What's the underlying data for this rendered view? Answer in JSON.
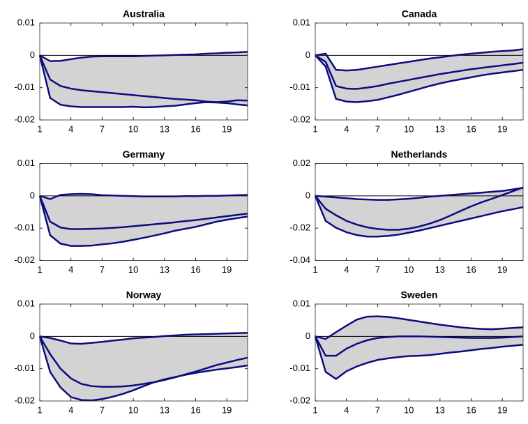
{
  "chart_data": [
    {
      "type": "band",
      "title": "Australia",
      "x": [
        1,
        2,
        3,
        4,
        5,
        6,
        7,
        8,
        9,
        10,
        11,
        12,
        13,
        14,
        15,
        16,
        17,
        18,
        19,
        20,
        21
      ],
      "xlim": [
        1,
        21
      ],
      "xticks": [
        1,
        4,
        7,
        10,
        13,
        16,
        19
      ],
      "ylim": [
        -0.02,
        0.01
      ],
      "yticks": [
        -0.02,
        -0.01,
        0,
        0.01
      ],
      "band_fill": "#d3d3d3",
      "zero_line": true,
      "series": [
        {
          "color": "#0c0c80",
          "values": [
            0,
            -0.0018,
            -0.0017,
            -0.0012,
            -0.0007,
            -0.0004,
            -0.0003,
            -0.0003,
            -0.0003,
            -0.0003,
            -0.0002,
            -0.0001,
            0,
            0.0001,
            0.0002,
            0.0003,
            0.0005,
            0.0006,
            0.0008,
            0.0009,
            0.0011
          ]
        },
        {
          "color": "#0c0c80",
          "values": [
            0,
            -0.0075,
            -0.0095,
            -0.0103,
            -0.0108,
            -0.0111,
            -0.0114,
            -0.0117,
            -0.012,
            -0.0123,
            -0.0126,
            -0.0129,
            -0.0132,
            -0.0135,
            -0.0137,
            -0.0139,
            -0.0143,
            -0.0145,
            -0.0143,
            -0.0139,
            -0.014
          ]
        },
        {
          "color": "#0c0c80",
          "values": [
            0,
            -0.0132,
            -0.0153,
            -0.0158,
            -0.016,
            -0.016,
            -0.016,
            -0.016,
            -0.016,
            -0.0159,
            -0.0161,
            -0.016,
            -0.0158,
            -0.0156,
            -0.0152,
            -0.0148,
            -0.0145,
            -0.0146,
            -0.0148,
            -0.0152,
            -0.0155
          ]
        }
      ]
    },
    {
      "type": "band",
      "title": "Canada",
      "x": [
        1,
        2,
        3,
        4,
        5,
        6,
        7,
        8,
        9,
        10,
        11,
        12,
        13,
        14,
        15,
        16,
        17,
        18,
        19,
        20,
        21
      ],
      "xlim": [
        1,
        21
      ],
      "xticks": [
        1,
        4,
        7,
        10,
        13,
        16,
        19
      ],
      "ylim": [
        -0.02,
        0.01
      ],
      "yticks": [
        -0.02,
        -0.01,
        0,
        0.01
      ],
      "band_fill": "#d3d3d3",
      "zero_line": true,
      "series": [
        {
          "color": "#0c0c80",
          "values": [
            0,
            0.0005,
            -0.0045,
            -0.0047,
            -0.0045,
            -0.004,
            -0.0035,
            -0.003,
            -0.0025,
            -0.002,
            -0.0015,
            -0.001,
            -0.0006,
            -0.0002,
            0.0002,
            0.0005,
            0.0008,
            0.0011,
            0.0013,
            0.0015,
            0.0019
          ]
        },
        {
          "color": "#0c0c80",
          "values": [
            0,
            -0.002,
            -0.0095,
            -0.0103,
            -0.0104,
            -0.01,
            -0.0095,
            -0.0088,
            -0.0082,
            -0.0076,
            -0.007,
            -0.0064,
            -0.0058,
            -0.0053,
            -0.0048,
            -0.0043,
            -0.0039,
            -0.0035,
            -0.0031,
            -0.0027,
            -0.0023
          ]
        },
        {
          "color": "#0c0c80",
          "values": [
            0,
            -0.0035,
            -0.0135,
            -0.0143,
            -0.0145,
            -0.0142,
            -0.0138,
            -0.013,
            -0.0122,
            -0.0113,
            -0.0104,
            -0.0095,
            -0.0087,
            -0.008,
            -0.0074,
            -0.0068,
            -0.0062,
            -0.0057,
            -0.0053,
            -0.0049,
            -0.0045
          ]
        }
      ]
    },
    {
      "type": "band",
      "title": "Germany",
      "x": [
        1,
        2,
        3,
        4,
        5,
        6,
        7,
        8,
        9,
        10,
        11,
        12,
        13,
        14,
        15,
        16,
        17,
        18,
        19,
        20,
        21
      ],
      "xlim": [
        1,
        21
      ],
      "xticks": [
        1,
        4,
        7,
        10,
        13,
        16,
        19
      ],
      "ylim": [
        -0.02,
        0.01
      ],
      "yticks": [
        -0.02,
        -0.01,
        0,
        0.01
      ],
      "band_fill": "#d3d3d3",
      "zero_line": true,
      "series": [
        {
          "color": "#0c0c80",
          "values": [
            0,
            -0.001,
            0.0003,
            0.0005,
            0.0006,
            0.0005,
            0.0002,
            0.0001,
            0,
            -0.0001,
            -0.0002,
            -0.0002,
            -0.0002,
            -0.0002,
            -0.0001,
            -0.0001,
            0,
            0,
            0.0001,
            0.0002,
            0.0003
          ]
        },
        {
          "color": "#0c0c80",
          "values": [
            0,
            -0.008,
            -0.0098,
            -0.0103,
            -0.0103,
            -0.0102,
            -0.0101,
            -0.0099,
            -0.0097,
            -0.0094,
            -0.0091,
            -0.0088,
            -0.0085,
            -0.0082,
            -0.0078,
            -0.0075,
            -0.0071,
            -0.0067,
            -0.0063,
            -0.0059,
            -0.0055
          ]
        },
        {
          "color": "#0c0c80",
          "values": [
            0,
            -0.0122,
            -0.0148,
            -0.0155,
            -0.0155,
            -0.0154,
            -0.015,
            -0.0147,
            -0.0142,
            -0.0136,
            -0.013,
            -0.0123,
            -0.0116,
            -0.0108,
            -0.0102,
            -0.0096,
            -0.0088,
            -0.008,
            -0.0074,
            -0.0069,
            -0.0064
          ]
        }
      ]
    },
    {
      "type": "band",
      "title": "Netherlands",
      "x": [
        1,
        2,
        3,
        4,
        5,
        6,
        7,
        8,
        9,
        10,
        11,
        12,
        13,
        14,
        15,
        16,
        17,
        18,
        19,
        20,
        21
      ],
      "xlim": [
        1,
        21
      ],
      "xticks": [
        1,
        4,
        7,
        10,
        13,
        16,
        19
      ],
      "ylim": [
        -0.04,
        0.02
      ],
      "yticks": [
        -0.04,
        -0.02,
        0,
        0.02
      ],
      "band_fill": "#d3d3d3",
      "zero_line": true,
      "series": [
        {
          "color": "#0c0c80",
          "values": [
            0,
            -0.0005,
            -0.001,
            -0.0015,
            -0.002,
            -0.0023,
            -0.0025,
            -0.0025,
            -0.0022,
            -0.0018,
            -0.0012,
            -0.0005,
            0,
            0.0005,
            0.001,
            0.0015,
            0.002,
            0.0025,
            0.003,
            0.004,
            0.005
          ]
        },
        {
          "color": "#0c0c80",
          "values": [
            0,
            -0.008,
            -0.012,
            -0.0155,
            -0.0178,
            -0.0195,
            -0.0205,
            -0.021,
            -0.021,
            -0.0203,
            -0.019,
            -0.0172,
            -0.015,
            -0.0122,
            -0.0093,
            -0.0065,
            -0.004,
            -0.0018,
            0.0005,
            0.0028,
            0.0052
          ]
        },
        {
          "color": "#0c0c80",
          "values": [
            0,
            -0.0155,
            -0.0198,
            -0.0225,
            -0.0243,
            -0.0252,
            -0.0252,
            -0.0248,
            -0.024,
            -0.0228,
            -0.0215,
            -0.02,
            -0.0185,
            -0.017,
            -0.0155,
            -0.014,
            -0.0125,
            -0.011,
            -0.0095,
            -0.0083,
            -0.007
          ]
        }
      ]
    },
    {
      "type": "band",
      "title": "Norway",
      "x": [
        1,
        2,
        3,
        4,
        5,
        6,
        7,
        8,
        9,
        10,
        11,
        12,
        13,
        14,
        15,
        16,
        17,
        18,
        19,
        20,
        21
      ],
      "xlim": [
        1,
        21
      ],
      "xticks": [
        1,
        4,
        7,
        10,
        13,
        16,
        19
      ],
      "ylim": [
        -0.02,
        0.01
      ],
      "yticks": [
        -0.02,
        -0.01,
        0,
        0.01
      ],
      "band_fill": "#d3d3d3",
      "zero_line": true,
      "series": [
        {
          "color": "#0c0c80",
          "values": [
            0,
            -0.0005,
            -0.0013,
            -0.0022,
            -0.0023,
            -0.002,
            -0.0017,
            -0.0013,
            -0.001,
            -0.0006,
            -0.0004,
            -0.0002,
            0.0001,
            0.0003,
            0.0005,
            0.0006,
            0.0007,
            0.0008,
            0.0009,
            0.001,
            0.0011
          ]
        },
        {
          "color": "#0c0c80",
          "values": [
            0,
            -0.0055,
            -0.01,
            -0.013,
            -0.0147,
            -0.0154,
            -0.0156,
            -0.0156,
            -0.0155,
            -0.0152,
            -0.0147,
            -0.0142,
            -0.0135,
            -0.0127,
            -0.0118,
            -0.0109,
            -0.0099,
            -0.0089,
            -0.0081,
            -0.0073,
            -0.0066
          ]
        },
        {
          "color": "#0c0c80",
          "values": [
            0,
            -0.011,
            -0.0158,
            -0.0188,
            -0.0197,
            -0.0198,
            -0.0194,
            -0.0187,
            -0.0178,
            -0.0167,
            -0.0154,
            -0.0142,
            -0.0133,
            -0.0126,
            -0.0119,
            -0.0113,
            -0.0108,
            -0.0103,
            -0.0099,
            -0.0095,
            -0.009
          ]
        }
      ]
    },
    {
      "type": "band",
      "title": "Sweden",
      "x": [
        1,
        2,
        3,
        4,
        5,
        6,
        7,
        8,
        9,
        10,
        11,
        12,
        13,
        14,
        15,
        16,
        17,
        18,
        19,
        20,
        21
      ],
      "xlim": [
        1,
        21
      ],
      "xticks": [
        1,
        4,
        7,
        10,
        13,
        16,
        19
      ],
      "ylim": [
        -0.02,
        0.01
      ],
      "yticks": [
        -0.02,
        -0.01,
        0,
        0.01
      ],
      "band_fill": "#d3d3d3",
      "zero_line": true,
      "series": [
        {
          "color": "#0c0c80",
          "values": [
            0,
            -0.0008,
            0.0013,
            0.0033,
            0.0052,
            0.0061,
            0.0062,
            0.006,
            0.0056,
            0.0051,
            0.0046,
            0.0041,
            0.0036,
            0.0032,
            0.0028,
            0.0025,
            0.0023,
            0.0022,
            0.0024,
            0.0026,
            0.0028
          ]
        },
        {
          "color": "#0c0c80",
          "values": [
            0,
            -0.006,
            -0.006,
            -0.0038,
            -0.0023,
            -0.0012,
            -0.0005,
            -0.0002,
            0,
            0,
            0,
            -0.0001,
            -0.0002,
            -0.0003,
            -0.0004,
            -0.0005,
            -0.0005,
            -0.0005,
            -0.0004,
            -0.0002,
            0
          ]
        },
        {
          "color": "#0c0c80",
          "values": [
            0,
            -0.011,
            -0.0132,
            -0.0108,
            -0.0093,
            -0.0082,
            -0.0073,
            -0.0068,
            -0.0064,
            -0.0061,
            -0.006,
            -0.0058,
            -0.0054,
            -0.005,
            -0.0047,
            -0.0043,
            -0.0039,
            -0.0036,
            -0.0032,
            -0.0029,
            -0.0026
          ]
        }
      ]
    }
  ]
}
